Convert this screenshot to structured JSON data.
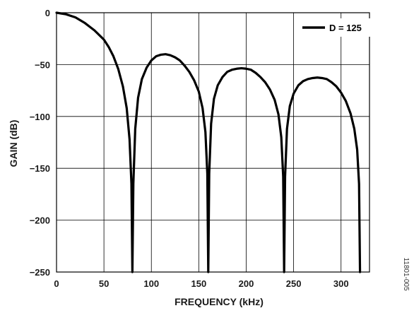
{
  "chart_data": {
    "type": "line",
    "xlabel": "FREQUENCY (kHz)",
    "ylabel": "GAIN (dB)",
    "xlim": [
      0,
      330
    ],
    "ylim": [
      -250,
      0
    ],
    "x_ticks": [
      0,
      50,
      100,
      150,
      200,
      250,
      300
    ],
    "y_ticks": [
      0,
      -50,
      -100,
      -150,
      -200,
      -250
    ],
    "x_tick_labels": [
      "0",
      "50",
      "100",
      "150",
      "200",
      "250",
      "300"
    ],
    "y_tick_labels": [
      "0",
      "−50",
      "−100",
      "−150",
      "−200",
      "−250"
    ],
    "grid": true,
    "legend_position": "top-right",
    "series": [
      {
        "name": "D = 125",
        "color": "#000000",
        "x": [
          0,
          10,
          20,
          30,
          40,
          50,
          55,
          60,
          65,
          70,
          74,
          77,
          79,
          80,
          81,
          83,
          86,
          90,
          95,
          100,
          105,
          110,
          115,
          120,
          125,
          130,
          135,
          140,
          145,
          150,
          154,
          157,
          159,
          160,
          161,
          163,
          166,
          170,
          175,
          180,
          185,
          190,
          195,
          200,
          205,
          210,
          215,
          220,
          225,
          230,
          234,
          237,
          239,
          240,
          241,
          243,
          246,
          250,
          255,
          260,
          265,
          270,
          275,
          280,
          285,
          290,
          295,
          300,
          305,
          310,
          314,
          317,
          319,
          320
        ],
        "y": [
          0,
          -1.5,
          -4.5,
          -10,
          -17,
          -26,
          -33,
          -42,
          -54,
          -71,
          -92,
          -122,
          -165,
          -250,
          -165,
          -112,
          -82,
          -64,
          -53,
          -46,
          -42,
          -40.5,
          -40,
          -41,
          -43,
          -46,
          -51,
          -57,
          -65,
          -76,
          -92,
          -115,
          -155,
          -250,
          -155,
          -107,
          -83,
          -70,
          -62,
          -57,
          -55,
          -54,
          -53.5,
          -54,
          -55,
          -58,
          -62,
          -67,
          -74,
          -84,
          -98,
          -120,
          -158,
          -250,
          -158,
          -112,
          -90,
          -78,
          -70,
          -66,
          -64,
          -63,
          -62.5,
          -63,
          -64,
          -67,
          -71,
          -77,
          -85,
          -97,
          -112,
          -132,
          -165,
          -250
        ]
      }
    ]
  },
  "figure_id": "11801-005",
  "legend": {
    "label": "D = 125"
  }
}
